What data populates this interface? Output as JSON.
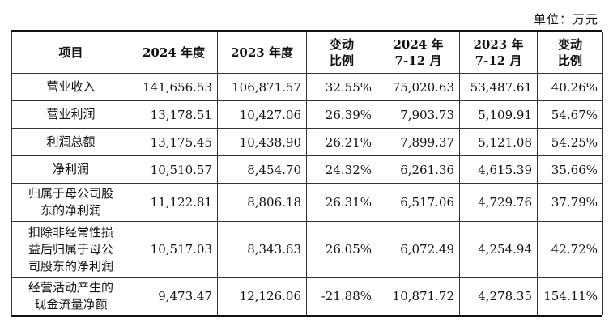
{
  "unit_label": "单位：万元",
  "table": {
    "headers": [
      "项目",
      "2024 年度",
      "2023 年度",
      "变动\n比例",
      "2024 年\n7-12 月",
      "2023 年\n7-12 月",
      "变动\n比例"
    ],
    "rows": [
      {
        "label": "营业收入",
        "values": [
          "141,656.53",
          "106,871.57",
          "32.55%",
          "75,020.63",
          "53,487.61",
          "40.26%"
        ]
      },
      {
        "label": "营业利润",
        "values": [
          "13,178.51",
          "10,427.06",
          "26.39%",
          "7,903.73",
          "5,109.91",
          "54.67%"
        ]
      },
      {
        "label": "利润总额",
        "values": [
          "13,175.45",
          "10,438.90",
          "26.21%",
          "7,899.37",
          "5,121.08",
          "54.25%"
        ]
      },
      {
        "label": "净利润",
        "values": [
          "10,510.57",
          "8,454.70",
          "24.32%",
          "6,261.36",
          "4,615.39",
          "35.66%"
        ]
      },
      {
        "label": "归属于母公司股\n东的净利润",
        "values": [
          "11,122.81",
          "8,806.18",
          "26.31%",
          "6,517.06",
          "4,729.76",
          "37.79%"
        ]
      },
      {
        "label": "扣除非经常性损\n益后归属于母公\n司股东的净利润",
        "values": [
          "10,517.03",
          "8,343.63",
          "26.05%",
          "6,072.49",
          "4,254.94",
          "42.72%"
        ]
      },
      {
        "label": "经营活动产生的\n现金流量净额",
        "values": [
          "9,473.47",
          "12,126.06",
          "-21.88%",
          "10,871.72",
          "4,278.35",
          "154.11%"
        ]
      }
    ]
  }
}
